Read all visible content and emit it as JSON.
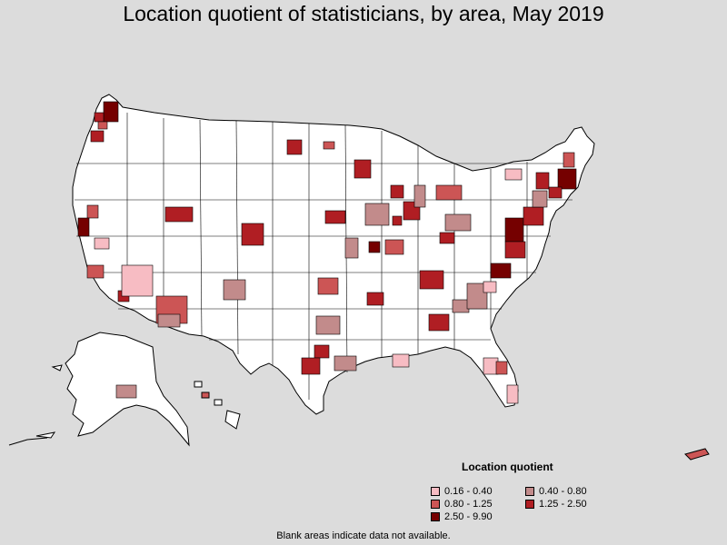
{
  "title": "Location quotient of statisticians, by area, May 2019",
  "legend": {
    "title": "Location quotient",
    "items": [
      {
        "label": "0.16 - 0.40",
        "color": "#f7bcc3"
      },
      {
        "label": "0.40 - 0.80",
        "color": "#c28b8b"
      },
      {
        "label": "0.80 - 1.25",
        "color": "#cc5555"
      },
      {
        "label": "1.25 - 2.50",
        "color": "#b01e23"
      },
      {
        "label": "2.50 - 9.90",
        "color": "#750000"
      }
    ]
  },
  "footnote": "Blank areas indicate data not available.",
  "colors": {
    "background": "#dcdcdc",
    "land": "#ffffff",
    "border": "#000000"
  }
}
